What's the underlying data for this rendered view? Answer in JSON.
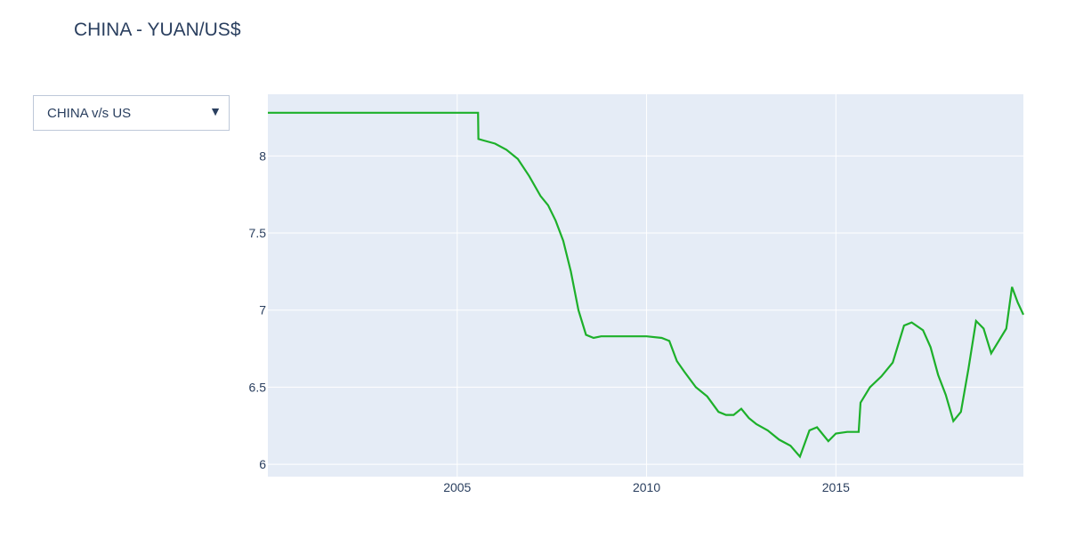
{
  "header": {
    "title": "CHINA - YUAN/US$"
  },
  "dropdown": {
    "selected": "CHINA v/s US",
    "arrow_icon": "caret-down-icon"
  },
  "colors": {
    "line": "#1db02a",
    "plot_bg": "#e5ecf6",
    "grid": "#ffffff",
    "text": "#2a3f5f"
  },
  "chart_data": {
    "type": "line",
    "title": "CHINA - YUAN/US$",
    "xlabel": "",
    "ylabel": "",
    "xlim": [
      2000.0,
      2019.95
    ],
    "ylim": [
      5.92,
      8.4
    ],
    "x_ticks": [
      {
        "value": 2005,
        "label": "2005"
      },
      {
        "value": 2010,
        "label": "2010"
      },
      {
        "value": 2015,
        "label": "2015"
      }
    ],
    "y_ticks": [
      {
        "value": 8,
        "label": "8"
      },
      {
        "value": 7.5,
        "label": "7.5"
      },
      {
        "value": 7,
        "label": "7"
      },
      {
        "value": 6.5,
        "label": "6.5"
      },
      {
        "value": 6,
        "label": "6"
      }
    ],
    "grid": true,
    "series": [
      {
        "x": [
          2000.0,
          2002.0,
          2004.0,
          2005.55,
          2005.56,
          2005.7,
          2006.0,
          2006.3,
          2006.6,
          2006.9,
          2007.2,
          2007.4,
          2007.6,
          2007.8,
          2008.0,
          2008.2,
          2008.4,
          2008.6,
          2008.8,
          2009.2,
          2009.6,
          2010.0,
          2010.4,
          2010.6,
          2010.8,
          2011.0,
          2011.3,
          2011.6,
          2011.9,
          2012.1,
          2012.3,
          2012.5,
          2012.7,
          2012.9,
          2013.2,
          2013.5,
          2013.8,
          2014.05,
          2014.3,
          2014.5,
          2014.8,
          2015.0,
          2015.3,
          2015.6,
          2015.65,
          2015.9,
          2016.2,
          2016.5,
          2016.8,
          2017.0,
          2017.3,
          2017.5,
          2017.7,
          2017.9,
          2018.1,
          2018.3,
          2018.5,
          2018.7,
          2018.9,
          2019.1,
          2019.3,
          2019.5,
          2019.65,
          2019.8,
          2019.95
        ],
        "values": [
          8.28,
          8.28,
          8.28,
          8.28,
          8.11,
          8.1,
          8.08,
          8.04,
          7.98,
          7.87,
          7.74,
          7.68,
          7.58,
          7.45,
          7.25,
          7.0,
          6.84,
          6.82,
          6.83,
          6.83,
          6.83,
          6.83,
          6.82,
          6.8,
          6.67,
          6.6,
          6.5,
          6.44,
          6.34,
          6.32,
          6.32,
          6.36,
          6.3,
          6.26,
          6.22,
          6.16,
          6.12,
          6.05,
          6.22,
          6.24,
          6.15,
          6.2,
          6.21,
          6.21,
          6.4,
          6.5,
          6.57,
          6.66,
          6.9,
          6.92,
          6.87,
          6.76,
          6.58,
          6.45,
          6.28,
          6.34,
          6.62,
          6.93,
          6.88,
          6.72,
          6.8,
          6.88,
          7.15,
          7.05,
          6.97
        ]
      }
    ]
  }
}
